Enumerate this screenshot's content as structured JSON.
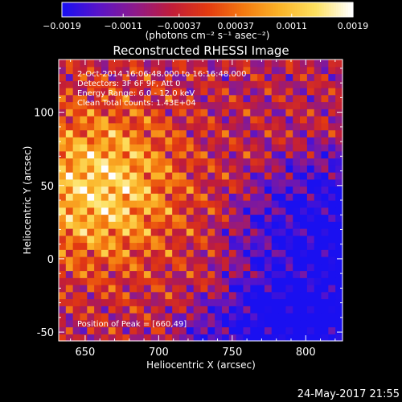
{
  "chart_data": {
    "type": "heatmap",
    "title": "Reconstructed RHESSI Image",
    "xlabel": "Heliocentric X (arcsec)",
    "ylabel": "Heliocentric Y (arcsec)",
    "xlim": [
      632,
      825
    ],
    "ylim": [
      -56,
      136
    ],
    "x_ticks": [
      650,
      700,
      750,
      800
    ],
    "y_ticks": [
      -50,
      0,
      50,
      100
    ],
    "colorbar": {
      "unit_label": "(photons cm⁻² s⁻¹ asec⁻²)",
      "range": [
        -0.0019,
        0.0019
      ],
      "tick_values": [
        -0.0019,
        -0.0011,
        -0.00037,
        0.00037,
        0.0011,
        0.0019
      ],
      "tick_labels": [
        "−0.0019",
        "−0.0011",
        "−0.00037",
        "0.00037",
        "0.0011",
        "0.0019"
      ],
      "colors": [
        "#1a10f0",
        "#5a14c8",
        "#8e1a8a",
        "#c01c3a",
        "#e33a10",
        "#f47a10",
        "#fbb428",
        "#fde060",
        "#ffffff"
      ]
    },
    "annotations": [
      "2-Oct-2014 16:06:48.000 to 16:16:48.000",
      "Detectors: 3F 6F 9F, Att 0",
      "Energy Range: 6.0 - 12.0 keV",
      "Clean    Total counts: 1.43E+04"
    ],
    "peak_label": "Position of Peak = [660,49]",
    "peak": [
      660,
      49
    ],
    "grid": false,
    "legend": "none"
  },
  "footer": {
    "date": "24-May-2017 21:55"
  }
}
